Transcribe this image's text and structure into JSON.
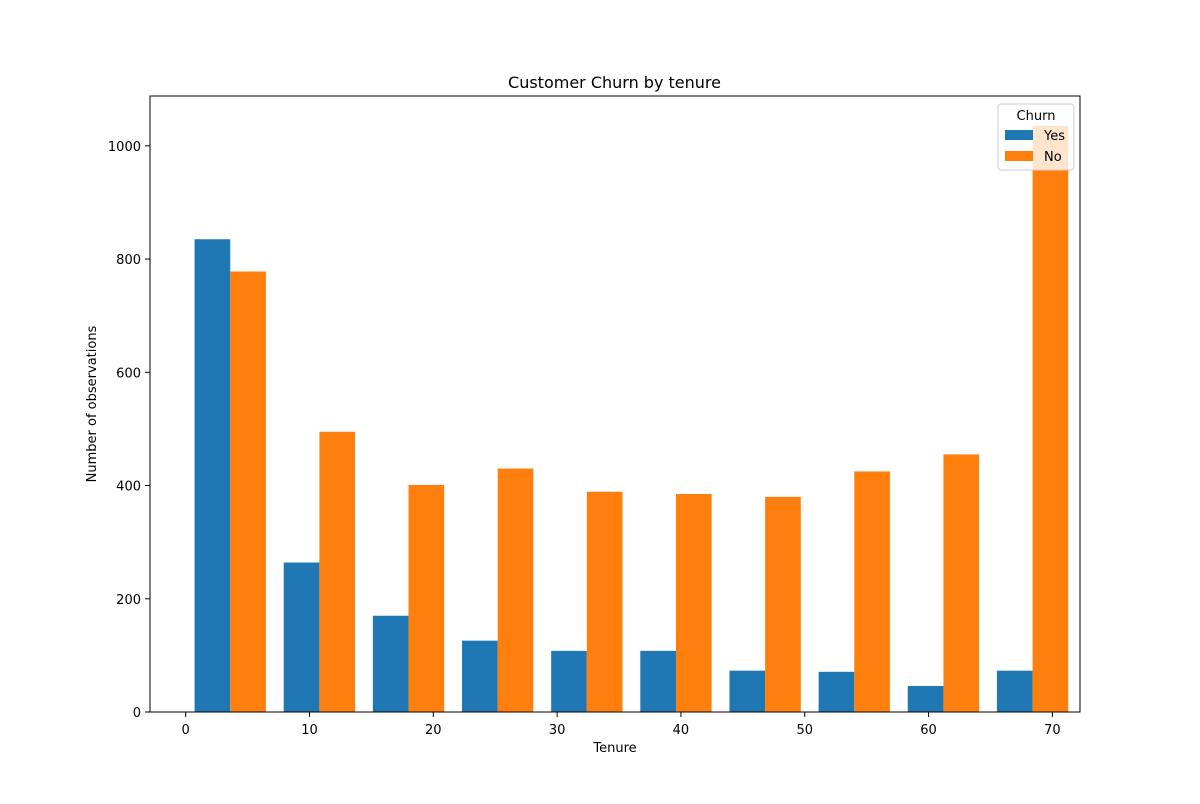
{
  "chart_data": {
    "type": "bar",
    "title": "Customer Churn by tenure",
    "xlabel": "Tenure",
    "ylabel": "Number of observations",
    "xlim": [
      -2.88,
      72.23
    ],
    "ylim": [
      0,
      1088
    ],
    "x_ticks": [
      0,
      10,
      20,
      30,
      40,
      50,
      60,
      70
    ],
    "y_ticks": [
      0,
      200,
      400,
      600,
      800,
      1000
    ],
    "bin_edges": [
      0,
      7.2,
      14.4,
      21.6,
      28.8,
      36,
      43.2,
      50.4,
      57.6,
      64.8,
      72
    ],
    "legend": {
      "title": "Churn",
      "position": "upper right"
    },
    "grid": false,
    "series": [
      {
        "name": "Yes",
        "color": "#1f77b4",
        "values": [
          835,
          264,
          170,
          126,
          108,
          108,
          73,
          71,
          46,
          73
        ]
      },
      {
        "name": "No",
        "color": "#ff7f0e",
        "values": [
          778,
          495,
          401,
          430,
          389,
          385,
          380,
          425,
          455,
          1035
        ]
      }
    ]
  }
}
